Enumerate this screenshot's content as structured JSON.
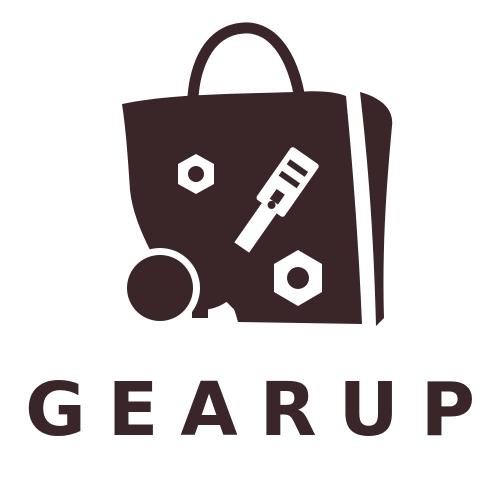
{
  "brand": {
    "name": "GEARUP",
    "color": "#3a2529",
    "background": "#ffffff"
  },
  "logo": {
    "icon": "shopping-bag-with-gears-icon",
    "elements": [
      "bag-handle",
      "bag-body",
      "hex-nut",
      "piston",
      "gear",
      "circle"
    ]
  }
}
